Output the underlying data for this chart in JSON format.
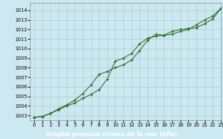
{
  "title": "Graphe pression niveau de la mer (hPa)",
  "bg_color": "#cce8f0",
  "grid_color": "#aacccc",
  "line_color": "#2d6a2d",
  "marker_color": "#2d6a2d",
  "xlabel_bg": "#2d6a2d",
  "xlabel_fg": "#ffffff",
  "xlim": [
    -0.5,
    23
  ],
  "ylim": [
    1002.5,
    1014.8
  ],
  "xtick_labels": [
    "0",
    "1",
    "2",
    "3",
    "4",
    "5",
    "6",
    "7",
    "8",
    "9",
    "10",
    "11",
    "12",
    "13",
    "14",
    "15",
    "16",
    "17",
    "18",
    "19",
    "20",
    "21",
    "22",
    "23"
  ],
  "yticks": [
    1003,
    1004,
    1005,
    1006,
    1007,
    1008,
    1009,
    1010,
    1011,
    1012,
    1013,
    1014
  ],
  "series1_x": [
    0,
    1,
    2,
    3,
    4,
    5,
    6,
    7,
    8,
    9,
    10,
    11,
    12,
    13,
    14,
    15,
    16,
    17,
    18,
    19,
    20,
    21,
    22,
    23
  ],
  "series1_y": [
    1002.8,
    1002.9,
    1003.2,
    1003.6,
    1004.0,
    1004.3,
    1004.8,
    1005.2,
    1005.7,
    1006.8,
    1008.7,
    1009.0,
    1009.5,
    1010.5,
    1011.1,
    1011.3,
    1011.4,
    1011.5,
    1011.8,
    1012.0,
    1012.5,
    1013.0,
    1013.4,
    1014.2
  ],
  "series2_x": [
    0,
    1,
    2,
    3,
    4,
    5,
    6,
    7,
    8,
    9,
    10,
    11,
    12,
    13,
    14,
    15,
    16,
    17,
    18,
    19,
    20,
    21,
    22,
    23
  ],
  "series2_y": [
    1002.8,
    1002.9,
    1003.2,
    1003.7,
    1004.1,
    1004.6,
    1005.3,
    1006.2,
    1007.3,
    1007.6,
    1008.0,
    1008.3,
    1008.8,
    1009.8,
    1010.9,
    1011.5,
    1011.4,
    1011.8,
    1012.0,
    1012.1,
    1012.2,
    1012.6,
    1013.1,
    1014.2
  ],
  "spine_color": "#888888",
  "tick_fontsize": 5,
  "title_fontsize": 6
}
